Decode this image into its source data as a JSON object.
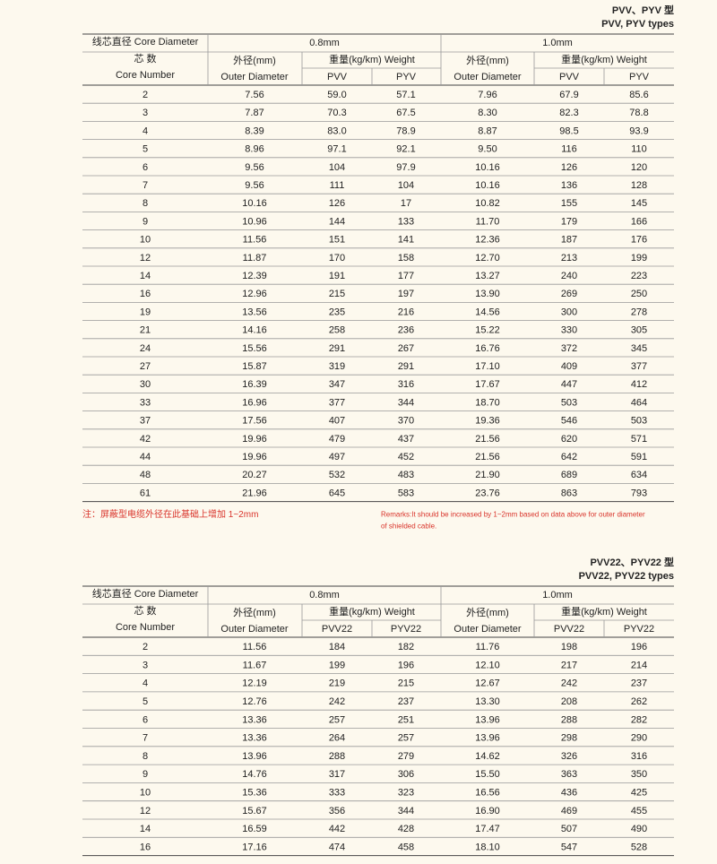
{
  "tables": [
    {
      "title": "PVV、PYV 型",
      "subtitle": "PVV, PYV types",
      "header": {
        "core_diameter": "线芯直径 Core Diameter",
        "size_a": "0.8mm",
        "size_b": "1.0mm",
        "core_cn": "芯 数",
        "core_en": "Core Number",
        "outer_cn_a": "外径(mm)",
        "outer_en_a": "Outer Diameter",
        "weight_a": "重量(kg/km) Weight",
        "col_a1": "PVV",
        "col_a2": "PYV",
        "outer_cn_b": "外径(mm)",
        "outer_en_b": "Outer Diameter",
        "weight_b": "重量(kg/km) Weight",
        "col_b1": "PVV",
        "col_b2": "PYV"
      },
      "rows": [
        [
          "2",
          "7.56",
          "59.0",
          "57.1",
          "7.96",
          "67.9",
          "85.6"
        ],
        [
          "3",
          "7.87",
          "70.3",
          "67.5",
          "8.30",
          "82.3",
          "78.8"
        ],
        [
          "4",
          "8.39",
          "83.0",
          "78.9",
          "8.87",
          "98.5",
          "93.9"
        ],
        [
          "5",
          "8.96",
          "97.1",
          "92.1",
          "9.50",
          "116",
          "110"
        ],
        [
          "6",
          "9.56",
          "104",
          "97.9",
          "10.16",
          "126",
          "120"
        ],
        [
          "7",
          "9.56",
          "111",
          "104",
          "10.16",
          "136",
          "128"
        ],
        [
          "8",
          "10.16",
          "126",
          "17",
          "10.82",
          "155",
          "145"
        ],
        [
          "9",
          "10.96",
          "144",
          "133",
          "11.70",
          "179",
          "166"
        ],
        [
          "10",
          "11.56",
          "151",
          "141",
          "12.36",
          "187",
          "176"
        ],
        [
          "12",
          "11.87",
          "170",
          "158",
          "12.70",
          "213",
          "199"
        ],
        [
          "14",
          "12.39",
          "191",
          "177",
          "13.27",
          "240",
          "223"
        ],
        [
          "16",
          "12.96",
          "215",
          "197",
          "13.90",
          "269",
          "250"
        ],
        [
          "19",
          "13.56",
          "235",
          "216",
          "14.56",
          "300",
          "278"
        ],
        [
          "21",
          "14.16",
          "258",
          "236",
          "15.22",
          "330",
          "305"
        ],
        [
          "24",
          "15.56",
          "291",
          "267",
          "16.76",
          "372",
          "345"
        ],
        [
          "27",
          "15.87",
          "319",
          "291",
          "17.10",
          "409",
          "377"
        ],
        [
          "30",
          "16.39",
          "347",
          "316",
          "17.67",
          "447",
          "412"
        ],
        [
          "33",
          "16.96",
          "377",
          "344",
          "18.70",
          "503",
          "464"
        ],
        [
          "37",
          "17.56",
          "407",
          "370",
          "19.36",
          "546",
          "503"
        ],
        [
          "42",
          "19.96",
          "479",
          "437",
          "21.56",
          "620",
          "571"
        ],
        [
          "44",
          "19.96",
          "497",
          "452",
          "21.56",
          "642",
          "591"
        ],
        [
          "48",
          "20.27",
          "532",
          "483",
          "21.90",
          "689",
          "634"
        ],
        [
          "61",
          "21.96",
          "645",
          "583",
          "23.76",
          "863",
          "793"
        ]
      ],
      "note_cn": "注：屏蔽型电缆外径在此基础上增加 1~2mm",
      "note_en": [
        "Remarks:It should be increased by 1~2mm based on data above for outer diameter",
        "of shielded cable."
      ]
    },
    {
      "title": "PVV22、PYV22 型",
      "subtitle": "PVV22, PYV22 types",
      "header": {
        "core_diameter": "线芯直径 Core Diameter",
        "size_a": "0.8mm",
        "size_b": "1.0mm",
        "core_cn": "芯 数",
        "core_en": "Core Number",
        "outer_cn_a": "外径(mm)",
        "outer_en_a": "Outer Diameter",
        "weight_a": "重量(kg/km) Weight",
        "col_a1": "PVV22",
        "col_a2": "PYV22",
        "outer_cn_b": "外径(mm)",
        "outer_en_b": "Outer Diameter",
        "weight_b": "重量(kg/km) Weight",
        "col_b1": "PVV22",
        "col_b2": "PYV22"
      },
      "rows": [
        [
          "2",
          "11.56",
          "184",
          "182",
          "11.76",
          "198",
          "196"
        ],
        [
          "3",
          "11.67",
          "199",
          "196",
          "12.10",
          "217",
          "214"
        ],
        [
          "4",
          "12.19",
          "219",
          "215",
          "12.67",
          "242",
          "237"
        ],
        [
          "5",
          "12.76",
          "242",
          "237",
          "13.30",
          "208",
          "262"
        ],
        [
          "6",
          "13.36",
          "257",
          "251",
          "13.96",
          "288",
          "282"
        ],
        [
          "7",
          "13.36",
          "264",
          "257",
          "13.96",
          "298",
          "290"
        ],
        [
          "8",
          "13.96",
          "288",
          "279",
          "14.62",
          "326",
          "316"
        ],
        [
          "9",
          "14.76",
          "317",
          "306",
          "15.50",
          "363",
          "350"
        ],
        [
          "10",
          "15.36",
          "333",
          "323",
          "16.56",
          "436",
          "425"
        ],
        [
          "12",
          "15.67",
          "356",
          "344",
          "16.90",
          "469",
          "455"
        ],
        [
          "14",
          "16.59",
          "442",
          "428",
          "17.47",
          "507",
          "490"
        ],
        [
          "16",
          "17.16",
          "474",
          "458",
          "18.10",
          "547",
          "528"
        ]
      ]
    }
  ]
}
